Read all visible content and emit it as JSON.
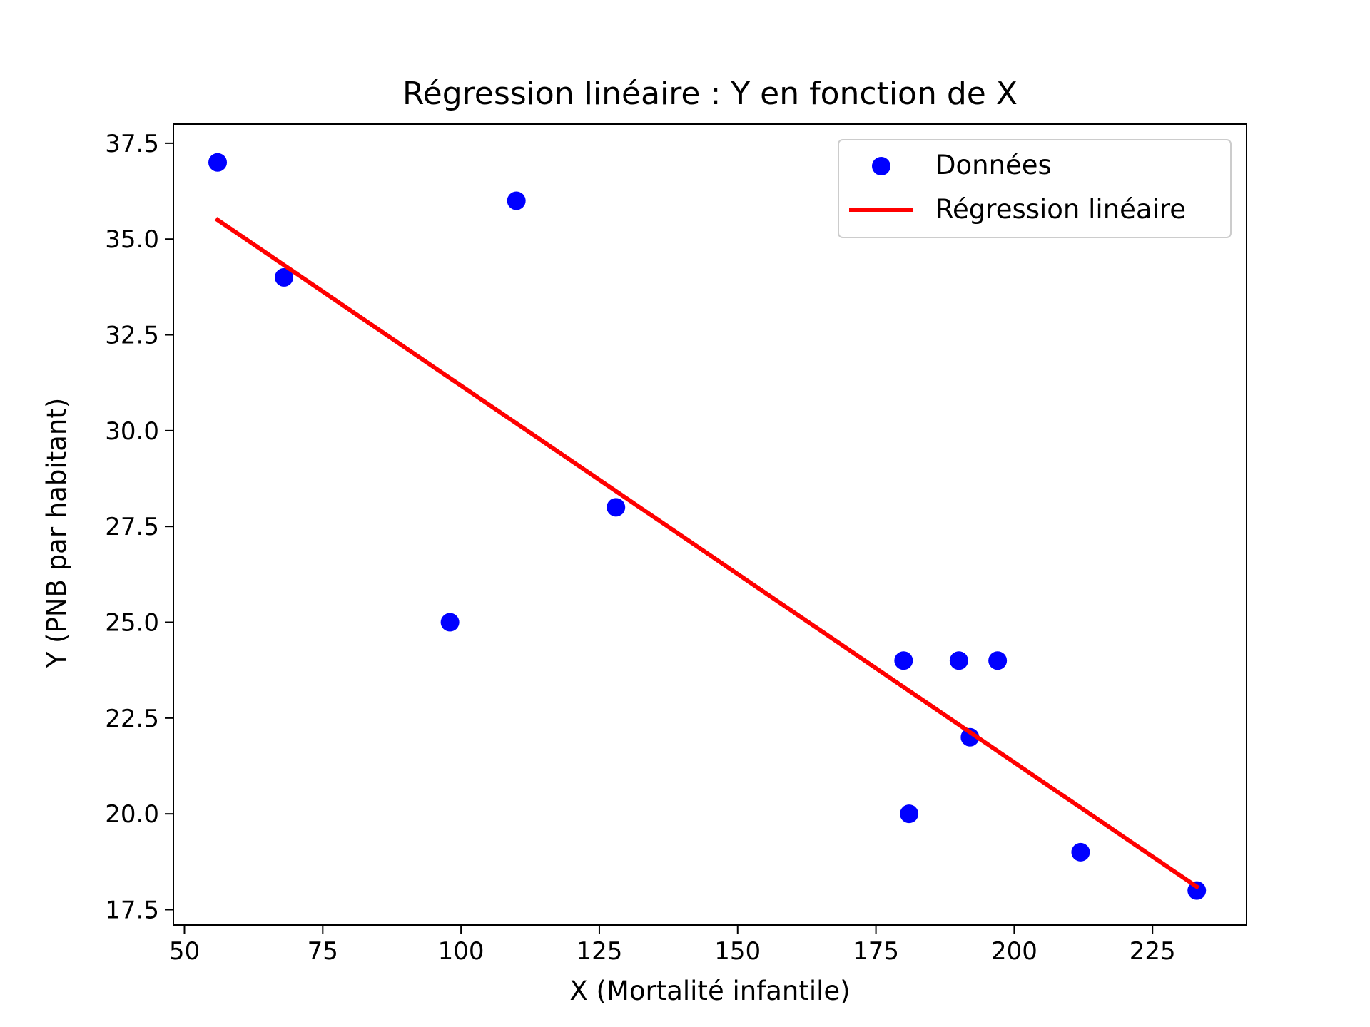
{
  "chart_data": {
    "type": "scatter",
    "title": "Régression linéaire : Y en fonction de X",
    "xlabel": "X (Mortalité infantile)",
    "ylabel": "Y (PNB par habitant)",
    "xlim": [
      48,
      242
    ],
    "ylim": [
      17.1,
      38.0
    ],
    "xticks": [
      50,
      75,
      100,
      125,
      150,
      175,
      200,
      225
    ],
    "xtick_labels": [
      "50",
      "75",
      "100",
      "125",
      "150",
      "175",
      "200",
      "225"
    ],
    "yticks": [
      17.5,
      20.0,
      22.5,
      25.0,
      27.5,
      30.0,
      32.5,
      35.0,
      37.5
    ],
    "ytick_labels": [
      "17.5",
      "20.0",
      "22.5",
      "25.0",
      "27.5",
      "30.0",
      "32.5",
      "35.0",
      "37.5"
    ],
    "grid": false,
    "legend_position": "top-right",
    "series": [
      {
        "name": "Données",
        "kind": "scatter",
        "color": "#0000ff",
        "points": [
          {
            "x": 56,
            "y": 37
          },
          {
            "x": 68,
            "y": 34
          },
          {
            "x": 98,
            "y": 25
          },
          {
            "x": 110,
            "y": 36
          },
          {
            "x": 128,
            "y": 28
          },
          {
            "x": 180,
            "y": 24
          },
          {
            "x": 181,
            "y": 20
          },
          {
            "x": 190,
            "y": 24
          },
          {
            "x": 192,
            "y": 22
          },
          {
            "x": 197,
            "y": 24
          },
          {
            "x": 212,
            "y": 19
          },
          {
            "x": 233,
            "y": 18
          }
        ]
      },
      {
        "name": "Régression linéaire",
        "kind": "line",
        "color": "#ff0000",
        "points": [
          {
            "x": 56,
            "y": 35.5
          },
          {
            "x": 233,
            "y": 18.1
          }
        ]
      }
    ]
  }
}
